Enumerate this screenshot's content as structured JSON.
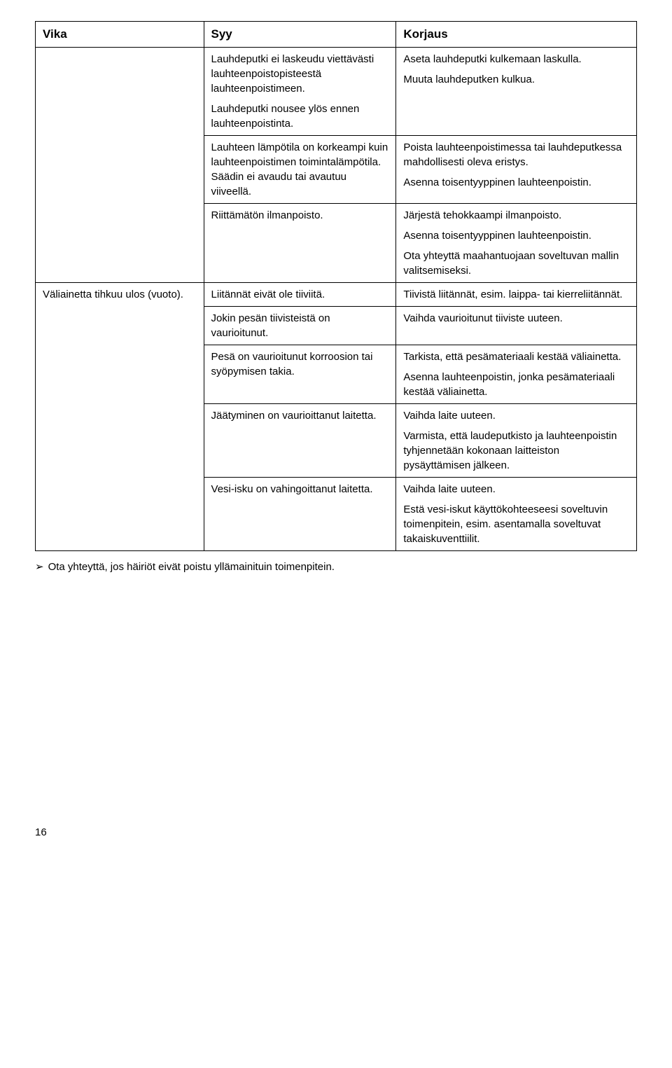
{
  "table": {
    "headers": {
      "c1": "Vika",
      "c2": "Syy",
      "c3": "Korjaus"
    },
    "r1": {
      "c2a": "Lauhdeputki ei laskeudu viettävästi lauhteenpoistopisteestä lauhteenpoistimeen.",
      "c2b": "Lauhdeputki nousee ylös ennen lauhteenpoistinta.",
      "c3a": "Aseta lauhdeputki kulkemaan laskulla.",
      "c3b": "Muuta lauhdeputken kulkua."
    },
    "r2": {
      "c2": "Lauhteen lämpötila on korkeampi kuin lauhteenpoistimen toimintalämpötila. Säädin ei avaudu tai avautuu viiveellä.",
      "c3a": "Poista lauhteenpoistimessa tai lauhdeputkessa mahdollisesti oleva eristys.",
      "c3b": "Asenna toisentyyppinen lauhteenpoistin."
    },
    "r3": {
      "c2": "Riittämätön ilmanpoisto.",
      "c3a": "Järjestä tehokkaampi ilmanpoisto.",
      "c3b": "Asenna toisentyyppinen lauhteenpoistin.",
      "c3c": "Ota yhteyttä maahantuojaan soveltuvan mallin valitsemiseksi."
    },
    "r4": {
      "c1": "Väliainetta tihkuu ulos (vuoto).",
      "c2": "Liitännät eivät ole tiiviitä.",
      "c3": "Tiivistä liitännät, esim. laippa- tai kierreliitännät."
    },
    "r5": {
      "c2": "Jokin pesän tiivisteistä on vaurioitunut.",
      "c3": "Vaihda vaurioitunut tiiviste uuteen."
    },
    "r6": {
      "c2": "Pesä on vaurioitunut korroosion tai syöpymisen takia.",
      "c3a": "Tarkista, että pesämateriaali kestää väliainetta.",
      "c3b": "Asenna lauhteenpoistin, jonka pesämateriaali kestää väliainetta."
    },
    "r7": {
      "c2": "Jäätyminen on vaurioittanut laitetta.",
      "c3a": "Vaihda laite uuteen.",
      "c3b": "Varmista, että laudeputkisto ja lauhteenpoistin tyhjennetään kokonaan laitteiston pysäyttämisen jälkeen."
    },
    "r8": {
      "c2": "Vesi-isku on vahingoittanut laitetta.",
      "c3a": "Vaihda laite uuteen.",
      "c3b": "Estä vesi-iskut käyttökohteeseesi soveltuvin toimenpitein, esim. asentamalla soveltuvat takaiskuventtiilit."
    }
  },
  "footer": {
    "arrow": "➢",
    "text": "Ota yhteyttä, jos häiriöt eivät poistu yllämainituin toimenpitein."
  },
  "page_number": "16"
}
